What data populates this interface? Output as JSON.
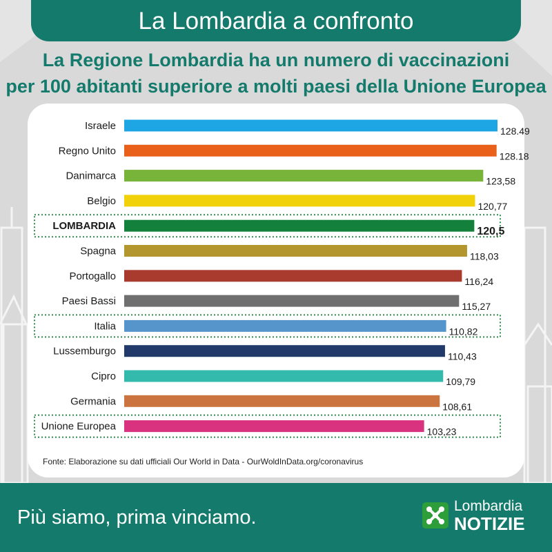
{
  "header": {
    "title": "La Lombardia a confronto"
  },
  "subtitle": {
    "line1": "La Regione Lombardia ha un numero di vaccinazioni",
    "line2": "per 100 abitanti superiore a molti paesi della Unione Europea"
  },
  "chart_data": {
    "type": "bar",
    "orientation": "horizontal",
    "categories": [
      "Israele",
      "Regno Unito",
      "Danimarca",
      "Belgio",
      "LOMBARDIA",
      "Spagna",
      "Portogallo",
      "Paesi Bassi",
      "Italia",
      "Lussemburgo",
      "Cipro",
      "Germania",
      "Unione Europea"
    ],
    "values": [
      128.49,
      128.18,
      123.58,
      120.77,
      120.5,
      118.03,
      116.24,
      115.27,
      110.82,
      110.43,
      109.79,
      108.61,
      103.23
    ],
    "value_labels": [
      "128.49",
      "128.18",
      "123,58",
      "120,77",
      "120,5",
      "118,03",
      "116,24",
      "115,27",
      "110,82",
      "110,43",
      "109,79",
      "108,61",
      "103,23"
    ],
    "colors": [
      "#1ea6e4",
      "#e8601a",
      "#78b43a",
      "#f1d10a",
      "#13813b",
      "#b3962d",
      "#a83a2e",
      "#6f6f6f",
      "#5695cb",
      "#223a6a",
      "#34b9ad",
      "#cc7440",
      "#d9327f"
    ],
    "highlighted": [
      "LOMBARDIA",
      "Italia",
      "Unione Europea"
    ],
    "bold": [
      "LOMBARDIA"
    ],
    "grid": false,
    "legend": false
  },
  "source": "Fonte: Elaborazione su dati ufficiali Our World in Data - OurWoldInData.org/coronavirus",
  "footer": {
    "slogan": "Più siamo, prima vinciamo.",
    "logo_top": "Lombardia",
    "logo_bottom": "NOTIZIE"
  },
  "colors": {
    "brand": "#137a6c",
    "background": "#d9d9d9",
    "highlight_border": "#2e8b4a"
  }
}
